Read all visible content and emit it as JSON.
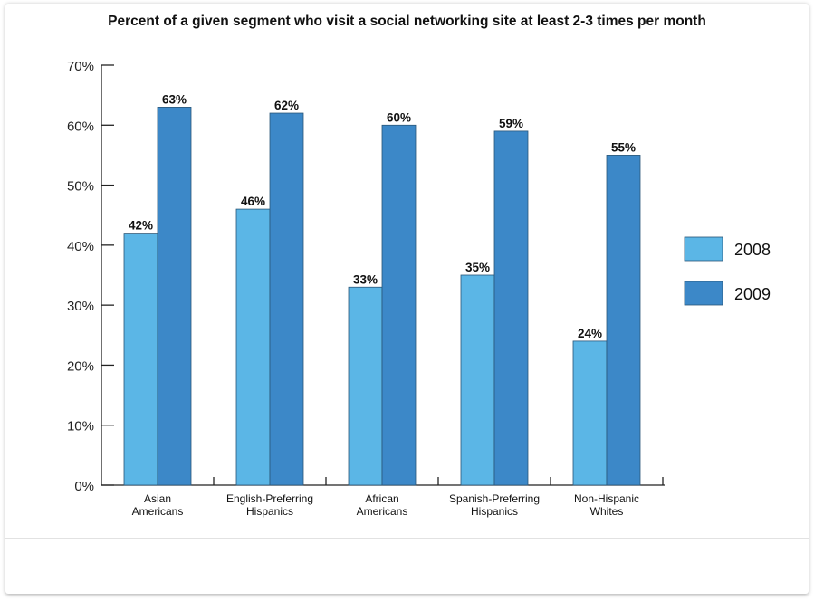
{
  "chart_data": {
    "type": "bar",
    "title": "Percent of a given segment who visit a social networking site at least 2-3 times per month",
    "xlabel": "",
    "ylabel": "",
    "ylim": [
      0,
      70
    ],
    "yticks": [
      "0%",
      "10%",
      "20%",
      "30%",
      "40%",
      "50%",
      "60%",
      "70%"
    ],
    "categories": [
      [
        "Asian",
        "Americans"
      ],
      [
        "English-Preferring",
        "Hispanics"
      ],
      [
        "African",
        "Americans"
      ],
      [
        "Spanish-Preferring",
        "Hispanics"
      ],
      [
        "Non-Hispanic",
        "Whites"
      ]
    ],
    "series": [
      {
        "name": "2008",
        "color": "#5bb6e6",
        "values": [
          42,
          46,
          33,
          35,
          24
        ],
        "labels": [
          "42%",
          "46%",
          "33%",
          "35%",
          "24%"
        ]
      },
      {
        "name": "2009",
        "color": "#3c88c8",
        "values": [
          63,
          62,
          60,
          59,
          55
        ],
        "labels": [
          "63%",
          "62%",
          "60%",
          "59%",
          "55%"
        ]
      }
    ],
    "legend": "right",
    "grid": false
  }
}
